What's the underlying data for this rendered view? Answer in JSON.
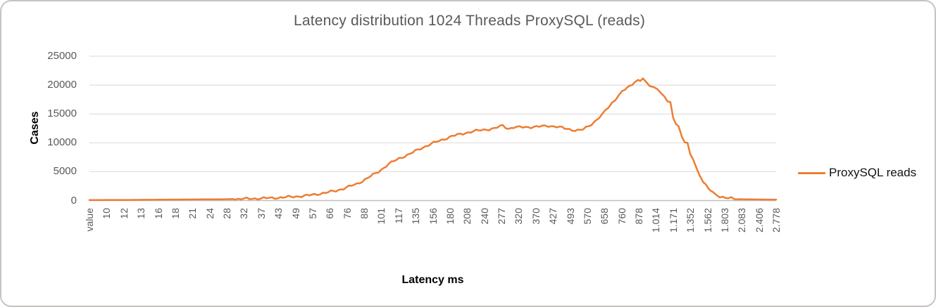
{
  "chart_data": {
    "type": "line",
    "title": "Latency distribution 1024 Threads ProxySQL (reads)",
    "xlabel": "Latency ms",
    "ylabel": "Cases",
    "ylim": [
      0,
      25000
    ],
    "yticks": [
      0,
      5000,
      10000,
      15000,
      20000,
      25000
    ],
    "x_tick_labels": [
      "value",
      "10",
      "12",
      "13",
      "16",
      "18",
      "21",
      "24",
      "28",
      "32",
      "37",
      "43",
      "49",
      "57",
      "66",
      "76",
      "88",
      "101",
      "117",
      "135",
      "156",
      "180",
      "208",
      "240",
      "277",
      "320",
      "370",
      "427",
      "493",
      "570",
      "658",
      "760",
      "878",
      "1.014",
      "1.171",
      "1.352",
      "1.562",
      "1.803",
      "2.083",
      "2.406",
      "2.778"
    ],
    "grid": "horizontal",
    "legend_position": "right",
    "series": [
      {
        "name": "ProxySQL reads",
        "color": "#ED7D31",
        "points_axis_fraction_vs_cases": [
          [
            0.0,
            80
          ],
          [
            0.015,
            100
          ],
          [
            0.036,
            110
          ],
          [
            0.056,
            110
          ],
          [
            0.077,
            130
          ],
          [
            0.097,
            140
          ],
          [
            0.118,
            170
          ],
          [
            0.138,
            180
          ],
          [
            0.159,
            200
          ],
          [
            0.179,
            210
          ],
          [
            0.2,
            230
          ],
          [
            0.221,
            280
          ],
          [
            0.241,
            350
          ],
          [
            0.262,
            430
          ],
          [
            0.282,
            550
          ],
          [
            0.297,
            670
          ],
          [
            0.313,
            800
          ],
          [
            0.328,
            1050
          ],
          [
            0.344,
            1350
          ],
          [
            0.359,
            1700
          ],
          [
            0.374,
            2250
          ],
          [
            0.39,
            2900
          ],
          [
            0.405,
            3900
          ],
          [
            0.421,
            5000
          ],
          [
            0.436,
            6350
          ],
          [
            0.451,
            7300
          ],
          [
            0.467,
            8100
          ],
          [
            0.482,
            9000
          ],
          [
            0.497,
            9800
          ],
          [
            0.513,
            10500
          ],
          [
            0.528,
            11150
          ],
          [
            0.544,
            11600
          ],
          [
            0.559,
            12000
          ],
          [
            0.574,
            12250
          ],
          [
            0.59,
            12500
          ],
          [
            0.602,
            13000
          ],
          [
            0.61,
            12450
          ],
          [
            0.618,
            12700
          ],
          [
            0.631,
            12700
          ],
          [
            0.643,
            12750
          ],
          [
            0.655,
            12800
          ],
          [
            0.668,
            12950
          ],
          [
            0.68,
            12800
          ],
          [
            0.692,
            12500
          ],
          [
            0.703,
            12250
          ],
          [
            0.711,
            12150
          ],
          [
            0.719,
            12300
          ],
          [
            0.727,
            12900
          ],
          [
            0.735,
            13600
          ],
          [
            0.746,
            14800
          ],
          [
            0.756,
            16200
          ],
          [
            0.766,
            17600
          ],
          [
            0.776,
            18900
          ],
          [
            0.787,
            19800
          ],
          [
            0.794,
            20500
          ],
          [
            0.799,
            20900
          ],
          [
            0.802,
            20700
          ],
          [
            0.806,
            21150
          ],
          [
            0.811,
            20500
          ],
          [
            0.816,
            19900
          ],
          [
            0.822,
            19600
          ],
          [
            0.827,
            19450
          ],
          [
            0.832,
            18700
          ],
          [
            0.837,
            17900
          ],
          [
            0.842,
            17200
          ],
          [
            0.846,
            16900
          ],
          [
            0.85,
            14300
          ],
          [
            0.854,
            13500
          ],
          [
            0.858,
            12900
          ],
          [
            0.863,
            11000
          ],
          [
            0.867,
            10150
          ],
          [
            0.871,
            9800
          ],
          [
            0.875,
            7900
          ],
          [
            0.879,
            7300
          ],
          [
            0.884,
            5600
          ],
          [
            0.889,
            4400
          ],
          [
            0.894,
            3200
          ],
          [
            0.901,
            2100
          ],
          [
            0.908,
            1350
          ],
          [
            0.918,
            700
          ],
          [
            0.93,
            400
          ],
          [
            0.944,
            260
          ],
          [
            0.959,
            210
          ],
          [
            0.979,
            180
          ],
          [
            1.0,
            170
          ]
        ]
      }
    ]
  },
  "legend": {
    "label": "ProxySQL reads"
  },
  "colors": {
    "series_line": "#ED7D31",
    "gridline": "#D9D9D9",
    "axis_line": "#BFBFBF",
    "tick_label": "#595959",
    "title_text": "#595959",
    "axis_title_text": "#000000",
    "frame_border": "#C6C4C2",
    "background": "#FFFFFF"
  }
}
